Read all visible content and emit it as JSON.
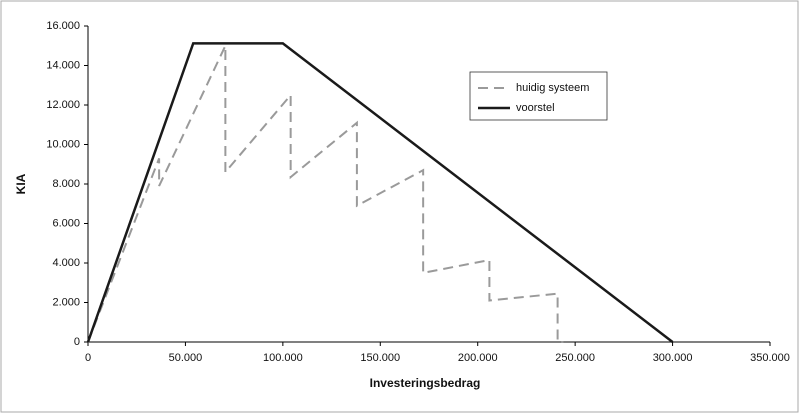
{
  "chart_data": {
    "type": "line",
    "x_label": "Investeringsbedrag",
    "y_label": "KIA",
    "xlim": [
      0,
      350000
    ],
    "ylim": [
      0,
      16000
    ],
    "xticks": [
      0,
      {
        "value": 50000,
        "label": "50.000"
      },
      {
        "value": 100000,
        "label": "100.000"
      },
      {
        "value": 150000,
        "label": "150.000"
      },
      {
        "value": 200000,
        "label": "200.000"
      },
      {
        "value": 250000,
        "label": "250.000"
      },
      {
        "value": 300000,
        "label": "300.000"
      },
      {
        "value": 350000,
        "label": "350.000"
      }
    ],
    "yticks": [
      0,
      {
        "value": 2000,
        "label": "2.000"
      },
      {
        "value": 4000,
        "label": "4.000"
      },
      {
        "value": 6000,
        "label": "6.000"
      },
      {
        "value": 8000,
        "label": "8.000"
      },
      {
        "value": 10000,
        "label": "10.000"
      },
      {
        "value": 12000,
        "label": "12.000"
      },
      {
        "value": 14000,
        "label": "14.000"
      },
      {
        "value": 16000,
        "label": "16.000"
      }
    ],
    "legend": "upper right",
    "series": [
      {
        "name": "huidig systeem",
        "color": "#9a9a9a",
        "dashed": true,
        "x": [
          0,
          36500,
          36500,
          70500,
          70500,
          104000,
          104000,
          138000,
          138000,
          172000,
          172000,
          206000,
          206000,
          241000,
          241000,
          244000
        ],
        "values": [
          0,
          9300,
          7900,
          15000,
          8600,
          12500,
          8350,
          11100,
          6900,
          8700,
          3500,
          4150,
          2100,
          2450,
          0,
          0
        ]
      },
      {
        "name": "voorstel",
        "color": "#1a1a1a",
        "dashed": false,
        "x": [
          0,
          54000,
          100000,
          300000
        ],
        "values": [
          0,
          15120,
          15120,
          0
        ]
      }
    ]
  }
}
